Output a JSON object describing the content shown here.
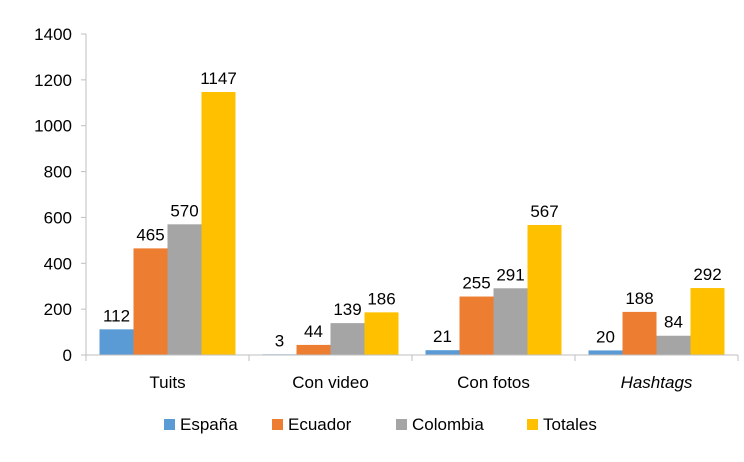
{
  "chart_data": {
    "type": "bar",
    "categories": [
      "Tuits",
      "Con video",
      "Con fotos",
      "Hashtags"
    ],
    "category_italic": [
      false,
      false,
      false,
      true
    ],
    "series": [
      {
        "name": "España",
        "color": "#5B9BD5",
        "values": [
          112,
          3,
          21,
          20
        ]
      },
      {
        "name": "Ecuador",
        "color": "#ED7D31",
        "values": [
          465,
          44,
          255,
          188
        ]
      },
      {
        "name": "Colombia",
        "color": "#A5A5A5",
        "values": [
          570,
          139,
          291,
          84
        ]
      },
      {
        "name": "Totales",
        "color": "#FFC000",
        "values": [
          1147,
          186,
          567,
          292
        ]
      }
    ],
    "ylim": [
      0,
      1400
    ],
    "yticks": [
      0,
      200,
      400,
      600,
      800,
      1000,
      1200,
      1400
    ],
    "grid": false,
    "legend": "bottom",
    "title": "",
    "xlabel": "",
    "ylabel": ""
  }
}
